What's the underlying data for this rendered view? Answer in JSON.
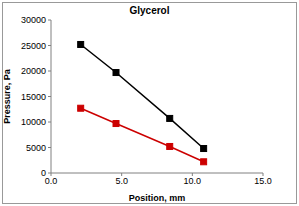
{
  "chart_data": {
    "type": "line",
    "title": "Glycerol",
    "x_label": "Position, mm",
    "y_label": "Pressure, Pa",
    "x": [
      2.1,
      4.6,
      8.4,
      10.8
    ],
    "series": [
      {
        "color": "#000000",
        "marker": "square",
        "values": [
          25200,
          19700,
          10700,
          4800
        ]
      },
      {
        "color": "#cc0000",
        "marker": "square",
        "values": [
          12700,
          9700,
          5200,
          2200
        ]
      }
    ],
    "xlim": [
      0,
      15
    ],
    "xticks": [
      {
        "value": 0,
        "label": "0.0"
      },
      {
        "value": 5,
        "label": "5.0"
      },
      {
        "value": 10,
        "label": "10.0"
      },
      {
        "value": 15,
        "label": "15.0"
      }
    ],
    "ylim": [
      0,
      30000
    ],
    "yticks": [
      0,
      5000,
      10000,
      15000,
      20000,
      25000,
      30000
    ]
  }
}
